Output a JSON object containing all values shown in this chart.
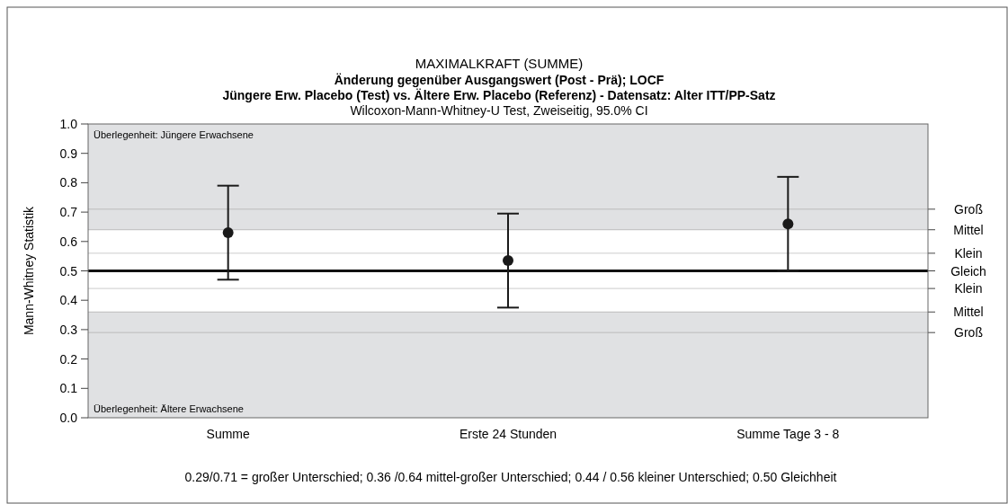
{
  "chart_data": {
    "type": "scatter",
    "title": "MAXIMALKRAFT (SUMME)",
    "subtitle": "Änderung gegenüber Ausgangswert (Post - Prä); LOCF\nJüngere Erw. Placebo (Test) vs. Ältere Erw. Placebo (Referenz) - Datensatz: Alter ITT/PP-Satz\nWilcoxon-Mann-Whitney-U Test, Zweiseitig, 95.0% CI",
    "ylabel": "Mann-Whitney Statistik",
    "categories": [
      "Summe",
      "Erste 24 Stunden",
      "Summe Tage 3 - 8"
    ],
    "series": [
      {
        "color": "#1a1a1a",
        "values": [
          0.63,
          0.535,
          0.66
        ],
        "errors": [
          [
            0.47,
            0.79
          ],
          [
            0.375,
            0.695
          ],
          [
            0.5,
            0.82
          ]
        ]
      }
    ],
    "marker": "circle",
    "ylim": [
      0,
      1
    ],
    "yticks": [
      {
        "value": 0,
        "label": "0.0"
      },
      {
        "value": 0.1,
        "label": "0.1"
      },
      {
        "value": 0.2,
        "label": "0.2"
      },
      {
        "value": 0.3,
        "label": "0.3"
      },
      {
        "value": 0.4,
        "label": "0.4"
      },
      {
        "value": 0.5,
        "label": "0.5"
      },
      {
        "value": 0.6,
        "label": "0.6"
      },
      {
        "value": 0.7,
        "label": "0.7"
      },
      {
        "value": 0.8,
        "label": "0.8"
      },
      {
        "value": 0.9,
        "label": "0.9"
      },
      {
        "value": 1,
        "label": "1.0"
      }
    ],
    "bands": [
      {
        "axis": "y",
        "from": 0.64,
        "to": 1,
        "label": "Überlegenheit: Jüngere Erwachsene",
        "color": "#e0e1e3"
      },
      {
        "axis": "y",
        "from": 0,
        "to": 0.36,
        "label": "Überlegenheit: Ältere Erwachsene",
        "color": "#e0e1e3"
      }
    ],
    "ref_lines": [
      {
        "axis": "y",
        "value": 0.71,
        "label": "Groß",
        "color": "#bbbbbb"
      },
      {
        "axis": "y",
        "value": 0.64,
        "label": "Mittel",
        "color": "#bbbbbb"
      },
      {
        "axis": "y",
        "value": 0.56,
        "label": "Klein",
        "color": "#cccccc"
      },
      {
        "axis": "y",
        "value": 0.44,
        "label": "Klein",
        "color": "#cccccc"
      },
      {
        "axis": "y",
        "value": 0.36,
        "label": "Mittel",
        "color": "#bbbbbb"
      },
      {
        "axis": "y",
        "value": 0.29,
        "label": "Groß",
        "color": "#bbbbbb"
      },
      {
        "axis": "y",
        "value": 0.5,
        "label": "Gleich",
        "color": "#111111"
      }
    ],
    "annotations": [
      "0.29/0.71 = großer Unterschied; 0.36 /0.64 mittel-großer Unterschied; 0.44 / 0.56 kleiner Unterschied; 0.50 Gleichheit"
    ],
    "grid": false
  }
}
